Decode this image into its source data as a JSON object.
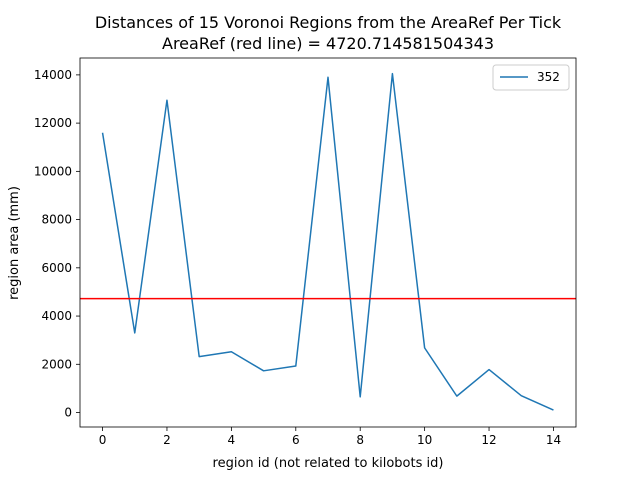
{
  "chart_data": {
    "type": "line",
    "title": "Distances of 15 Voronoi Regions from the AreaRef Per Tick",
    "subtitle": "AreaRef (red line) = 4720.714581504343",
    "xlabel": "region id (not related to kilobots id)",
    "ylabel": "region area (mm)",
    "xlim": [
      -0.7,
      14.7
    ],
    "ylim": [
      -600,
      14700
    ],
    "xticks": [
      0,
      2,
      4,
      6,
      8,
      10,
      12,
      14
    ],
    "yticks": [
      0,
      2000,
      4000,
      6000,
      8000,
      10000,
      12000,
      14000
    ],
    "grid": false,
    "legend_position": "top-right",
    "x": [
      0,
      1,
      2,
      3,
      4,
      5,
      6,
      7,
      8,
      9,
      10,
      11,
      12,
      13,
      14
    ],
    "series": [
      {
        "name": "352",
        "color": "#1f77b4",
        "values": [
          11600,
          3300,
          12950,
          2320,
          2520,
          1730,
          1930,
          13900,
          650,
          14050,
          2680,
          680,
          1780,
          700,
          100
        ]
      }
    ],
    "reference_line": {
      "y": 4720.714581504343,
      "color": "#ff0000"
    }
  }
}
